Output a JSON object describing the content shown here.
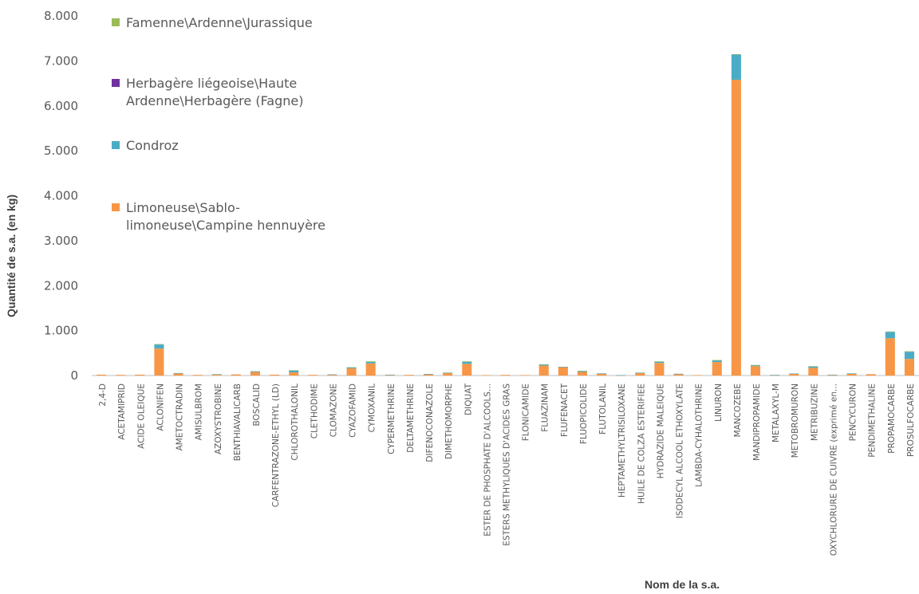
{
  "chart_data": {
    "type": "bar",
    "stacked": true,
    "xlabel": "Nom de la s.a.",
    "ylabel": "Quantité de s.a. (en kg)",
    "ylim": [
      0,
      8000
    ],
    "yticks": [
      "0",
      "1.000",
      "2.000",
      "3.000",
      "4.000",
      "5.000",
      "6.000",
      "7.000",
      "8.000"
    ],
    "grid": false,
    "legend_position": "top-left",
    "categories": [
      "2,4-D",
      "ACETAMIPRID",
      "ACIDE OLEIQUE",
      "ACLONIFEN",
      "AMETOCTRADIN",
      "AMISULBROM",
      "AZOXYSTROBINE",
      "BENTHIAVALICARB",
      "BOSCALID",
      "CARFENTRAZONE-ETHYL (LD)",
      "CHLOROTHALONIL",
      "CLETHODIME",
      "CLOMAZONE",
      "CYAZOFAMID",
      "CYMOXANIL",
      "CYPERMETHRINE",
      "DELTAMETHRINE",
      "DIFENOCONAZOLE",
      "DIMETHOMORPHE",
      "DIQUAT",
      "ESTER DE PHOSPHATE D'ALCOOLS...",
      "ESTERS METHYLIQUES D'ACIDES GRAS",
      "FLONICAMIDE",
      "FLUAZINAM",
      "FLUFENACET",
      "FLUOPICOLIDE",
      "FLUTOLANIL",
      "HEPTAMETHYLTRISILOXANE",
      "HUILE DE COLZA ESTERIFIEE",
      "HYDRAZIDE MALEIQUE",
      "ISODECYL ALCOOL ETHOXYLATE",
      "LAMBDA-CYHALOTHRINE",
      "LINURON",
      "MANCOZEBE",
      "MANDIPROPAMIDE",
      "METALAXYL-M",
      "METOBROMURON",
      "METRIBUZINE",
      "OXYCHLORURE DE CUIVRE (exprimé en...",
      "PENCYCURON",
      "PENDIMETHALINE",
      "PROPAMOCARBE",
      "PROSULFOCARBE"
    ],
    "series": [
      {
        "name": "Limoneuse\\Sablo-limoneuse\\Campine hennuyère",
        "color": "#F79646",
        "values": [
          20,
          15,
          20,
          600,
          50,
          15,
          25,
          25,
          80,
          20,
          70,
          15,
          20,
          160,
          270,
          10,
          15,
          30,
          60,
          260,
          10,
          15,
          10,
          220,
          190,
          80,
          40,
          5,
          60,
          280,
          35,
          10,
          300,
          6580,
          210,
          10,
          40,
          170,
          10,
          40,
          30,
          830,
          370
        ]
      },
      {
        "name": "Condroz",
        "color": "#4BACC6",
        "values": [
          0,
          0,
          0,
          90,
          5,
          0,
          5,
          0,
          15,
          0,
          40,
          0,
          5,
          20,
          40,
          10,
          0,
          5,
          5,
          50,
          0,
          0,
          0,
          25,
          5,
          20,
          10,
          5,
          5,
          30,
          5,
          0,
          40,
          560,
          20,
          5,
          5,
          30,
          10,
          10,
          0,
          140,
          160
        ]
      },
      {
        "name": "Herbagère liégeoise\\Haute Ardenne\\Herbagère (Fagne)",
        "color": "#7030A0",
        "values": [
          0,
          0,
          0,
          0,
          0,
          0,
          0,
          0,
          0,
          0,
          0,
          0,
          0,
          0,
          0,
          0,
          0,
          0,
          0,
          0,
          0,
          0,
          0,
          0,
          0,
          0,
          0,
          0,
          0,
          0,
          0,
          0,
          0,
          0,
          0,
          0,
          0,
          0,
          0,
          0,
          0,
          0,
          0
        ]
      },
      {
        "name": "Famenne\\Ardenne\\Jurassique",
        "color": "#9BBB59",
        "values": [
          0,
          0,
          0,
          10,
          0,
          0,
          0,
          0,
          0,
          0,
          10,
          0,
          0,
          5,
          5,
          0,
          0,
          0,
          0,
          5,
          0,
          0,
          0,
          5,
          0,
          5,
          0,
          0,
          0,
          5,
          0,
          0,
          5,
          10,
          5,
          0,
          0,
          10,
          0,
          0,
          0,
          10,
          10
        ]
      }
    ]
  }
}
